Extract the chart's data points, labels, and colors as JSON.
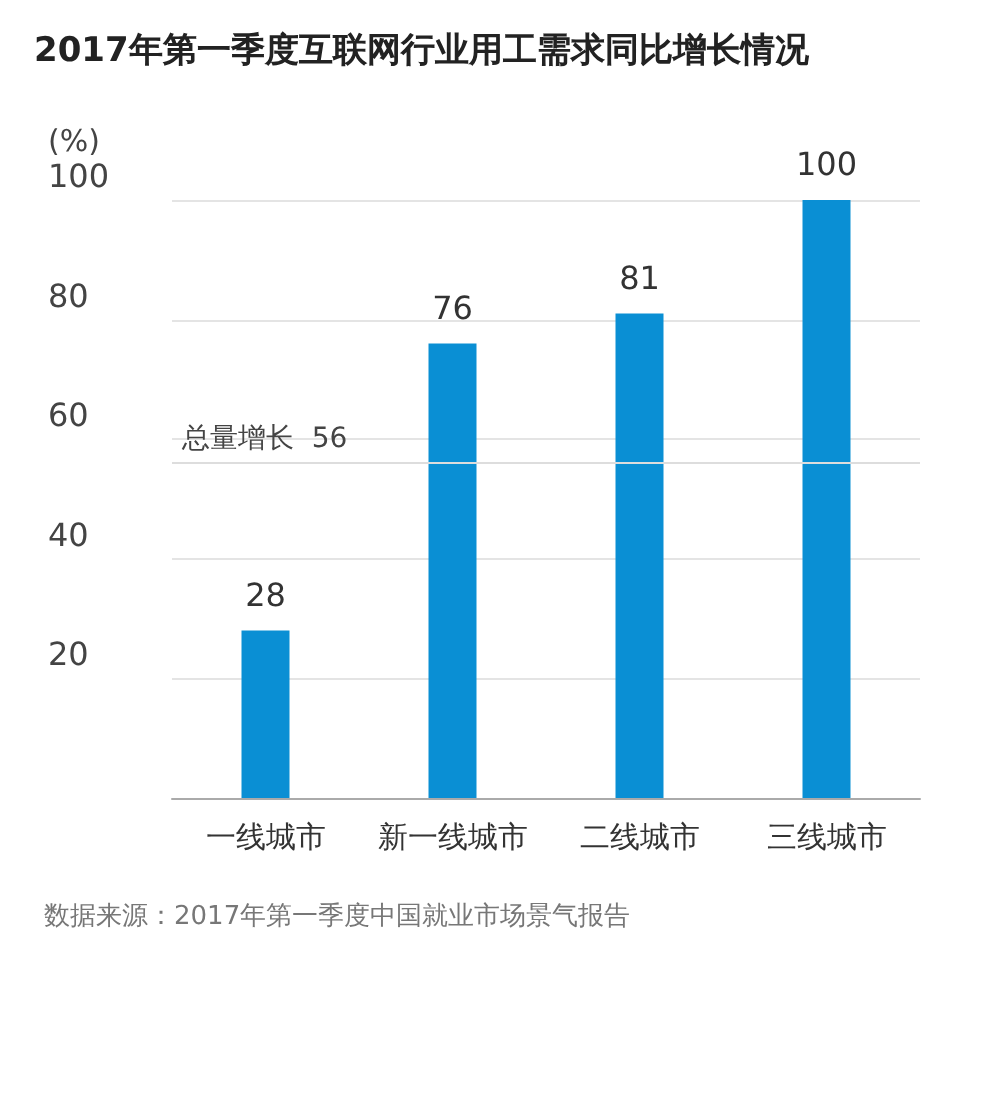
{
  "chart_data": {
    "type": "bar",
    "title": "2017年第一季度互联网行业用工需求同比增长情况",
    "ylabel": "(%)",
    "categories": [
      "一线城市",
      "新一线城市",
      "二线城市",
      "三线城市"
    ],
    "values": [
      28,
      76,
      81,
      100
    ],
    "color": "#0a8fd4",
    "data_labels": true,
    "ylim": [
      0,
      100
    ],
    "yticks": [
      20,
      40,
      60,
      80,
      100
    ],
    "grid": "y",
    "ref_lines": [
      {
        "axis": "y",
        "value": 56,
        "label": "总量增长  56",
        "color": "#dddddd"
      }
    ],
    "annotations": [
      "数据来源：2017年第一季度中国就业市场景气报告"
    ]
  }
}
